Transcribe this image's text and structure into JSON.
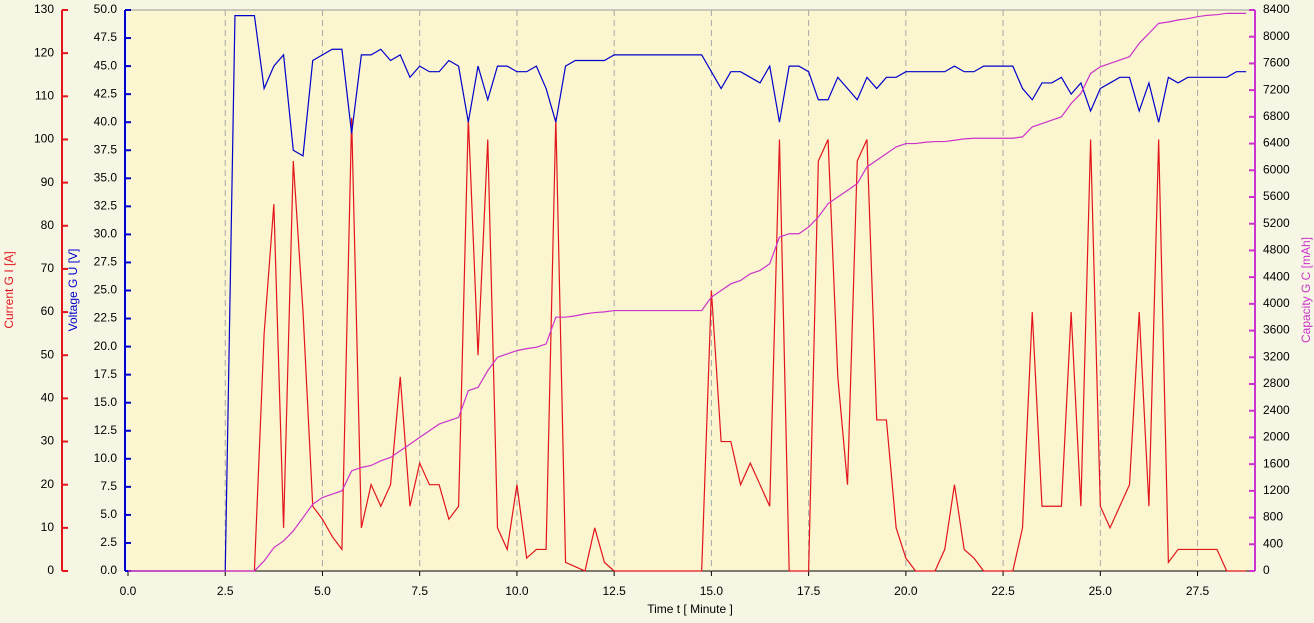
{
  "chart_data": {
    "type": "line",
    "x_label": "Time  t  [ Minute ]",
    "y_label": "Current G  I  [A]",
    "y2_label": "Voltage G  U  [V]",
    "y3_label": "Capacity G  C  [mAh]",
    "xlim": [
      0,
      28.9
    ],
    "ylim": [
      0,
      130
    ],
    "y2lim": [
      0,
      50
    ],
    "y3lim": [
      0,
      8400
    ],
    "xgrid": true,
    "xticks": [
      {
        "value": 0,
        "label": "0.0"
      },
      {
        "value": 2.5,
        "label": "2.5"
      },
      {
        "value": 5,
        "label": "5.0"
      },
      {
        "value": 7.5,
        "label": "7.5"
      },
      {
        "value": 10,
        "label": "10.0"
      },
      {
        "value": 12.5,
        "label": "12.5"
      },
      {
        "value": 15,
        "label": "15.0"
      },
      {
        "value": 17.5,
        "label": "17.5"
      },
      {
        "value": 20,
        "label": "20.0"
      },
      {
        "value": 22.5,
        "label": "22.5"
      },
      {
        "value": 25,
        "label": "25.0"
      },
      {
        "value": 27.5,
        "label": "27.5"
      }
    ],
    "yticks": [
      0,
      10,
      20,
      30,
      40,
      50,
      60,
      70,
      80,
      90,
      100,
      110,
      120,
      130
    ],
    "y2ticks": [
      {
        "value": 0,
        "label": "0.0"
      },
      {
        "value": 2.5,
        "label": "2.5"
      },
      {
        "value": 5,
        "label": "5.0"
      },
      {
        "value": 7.5,
        "label": "7.5"
      },
      {
        "value": 10,
        "label": "10.0"
      },
      {
        "value": 12.5,
        "label": "12.5"
      },
      {
        "value": 15,
        "label": "15.0"
      },
      {
        "value": 17.5,
        "label": "17.5"
      },
      {
        "value": 20,
        "label": "20.0"
      },
      {
        "value": 22.5,
        "label": "22.5"
      },
      {
        "value": 25,
        "label": "25.0"
      },
      {
        "value": 27.5,
        "label": "27.5"
      },
      {
        "value": 30,
        "label": "30.0"
      },
      {
        "value": 32.5,
        "label": "32.5"
      },
      {
        "value": 35,
        "label": "35.0"
      },
      {
        "value": 37.5,
        "label": "37.5"
      },
      {
        "value": 40,
        "label": "40.0"
      },
      {
        "value": 42.5,
        "label": "42.5"
      },
      {
        "value": 45,
        "label": "45.0"
      },
      {
        "value": 47.5,
        "label": "47.5"
      },
      {
        "value": 50,
        "label": "50.0"
      }
    ],
    "y3ticks": [
      0,
      400,
      800,
      1200,
      1600,
      2000,
      2400,
      2800,
      3200,
      3600,
      4000,
      4400,
      4800,
      5200,
      5600,
      6000,
      6400,
      6800,
      7200,
      7600,
      8000,
      8400
    ],
    "x": [
      0,
      0.25,
      0.5,
      0.75,
      1,
      1.25,
      1.5,
      1.75,
      2,
      2.25,
      2.5,
      2.75,
      3,
      3.25,
      3.5,
      3.75,
      4,
      4.25,
      4.5,
      4.75,
      5,
      5.25,
      5.5,
      5.75,
      6,
      6.25,
      6.5,
      6.75,
      7,
      7.25,
      7.5,
      7.75,
      8,
      8.25,
      8.5,
      8.75,
      9,
      9.25,
      9.5,
      9.75,
      10,
      10.25,
      10.5,
      10.75,
      11,
      11.25,
      11.5,
      11.75,
      12,
      12.25,
      12.5,
      12.75,
      13,
      13.25,
      13.5,
      13.75,
      14,
      14.25,
      14.5,
      14.75,
      15,
      15.25,
      15.5,
      15.75,
      16,
      16.25,
      16.5,
      16.75,
      17,
      17.25,
      17.5,
      17.75,
      18,
      18.25,
      18.5,
      18.75,
      19,
      19.25,
      19.5,
      19.75,
      20,
      20.25,
      20.5,
      20.75,
      21,
      21.25,
      21.5,
      21.75,
      22,
      22.25,
      22.5,
      22.75,
      23,
      23.25,
      23.5,
      23.75,
      24,
      24.25,
      24.5,
      24.75,
      25,
      25.25,
      25.5,
      25.75,
      26,
      26.25,
      26.5,
      26.75,
      27,
      27.25,
      27.5,
      27.75,
      28,
      28.25,
      28.5,
      28.75
    ],
    "series": [
      {
        "name": "Current",
        "axis": "y",
        "color": "#e3141c",
        "values": [
          0,
          0,
          0,
          0,
          0,
          0,
          0,
          0,
          0,
          0,
          0,
          0,
          0,
          0,
          55,
          85,
          10,
          95,
          60,
          15,
          12,
          8,
          5,
          105,
          10,
          20,
          15,
          20,
          45,
          15,
          25,
          20,
          20,
          12,
          15,
          105,
          50,
          100,
          10,
          5,
          20,
          3,
          5,
          5,
          105,
          2,
          1,
          0,
          10,
          2,
          0,
          0,
          0,
          0,
          0,
          0,
          0,
          0,
          0,
          0,
          65,
          30,
          30,
          20,
          25,
          20,
          15,
          100,
          0,
          0,
          0,
          95,
          100,
          45,
          20,
          95,
          100,
          35,
          35,
          10,
          3,
          0,
          0,
          0,
          5,
          20,
          5,
          3,
          0,
          0,
          0,
          0,
          10,
          60,
          15,
          15,
          15,
          60,
          15,
          100,
          15,
          10,
          15,
          20,
          60,
          15,
          100,
          2,
          5,
          5,
          5,
          5,
          5,
          0,
          0,
          0
        ]
      },
      {
        "name": "Voltage",
        "axis": "y2",
        "color": "#0000cc",
        "values": [
          0,
          0,
          0,
          0,
          0,
          0,
          0,
          0,
          0,
          0,
          0,
          49.5,
          49.5,
          49.5,
          43,
          45,
          46,
          37.5,
          37,
          45.5,
          46,
          46.5,
          46.5,
          39,
          46,
          46,
          46.5,
          45.5,
          46,
          44,
          45,
          44.5,
          44.5,
          45.5,
          45,
          40,
          45,
          42,
          45,
          45,
          44.5,
          44.5,
          45,
          43,
          40,
          45,
          45.5,
          45.5,
          45.5,
          45.5,
          46,
          46,
          46,
          46,
          46,
          46,
          46,
          46,
          46,
          46,
          44.5,
          43,
          44.5,
          44.5,
          44,
          43.5,
          45,
          40,
          45,
          45,
          44.5,
          42,
          42,
          44,
          43,
          42,
          44,
          43,
          44,
          44,
          44.5,
          44.5,
          44.5,
          44.5,
          44.5,
          45,
          44.5,
          44.5,
          45,
          45,
          45,
          45,
          43,
          42,
          43.5,
          43.5,
          44,
          42.5,
          43.5,
          41,
          43,
          43.5,
          44,
          44,
          41,
          43.5,
          40,
          44,
          43.5,
          44,
          44,
          44,
          44,
          44,
          44.5,
          44.5
        ]
      },
      {
        "name": "Capacity",
        "axis": "y3",
        "color": "#cc33cc",
        "values": [
          0,
          0,
          0,
          0,
          0,
          0,
          0,
          0,
          0,
          0,
          0,
          0,
          0,
          0,
          150,
          350,
          450,
          600,
          800,
          1000,
          1100,
          1150,
          1200,
          1500,
          1550,
          1580,
          1650,
          1700,
          1800,
          1900,
          2000,
          2100,
          2200,
          2250,
          2300,
          2700,
          2750,
          3000,
          3200,
          3250,
          3300,
          3330,
          3350,
          3400,
          3800,
          3800,
          3820,
          3850,
          3870,
          3880,
          3900,
          3900,
          3900,
          3900,
          3900,
          3900,
          3900,
          3900,
          3900,
          3900,
          4100,
          4200,
          4300,
          4350,
          4450,
          4500,
          4600,
          5000,
          5050,
          5050,
          5150,
          5300,
          5500,
          5600,
          5700,
          5800,
          6050,
          6150,
          6250,
          6350,
          6400,
          6400,
          6420,
          6430,
          6430,
          6450,
          6470,
          6480,
          6480,
          6480,
          6480,
          6480,
          6500,
          6650,
          6700,
          6750,
          6800,
          7000,
          7150,
          7450,
          7550,
          7600,
          7650,
          7700,
          7900,
          8050,
          8200,
          8220,
          8250,
          8270,
          8300,
          8320,
          8330,
          8350,
          8350,
          8350
        ]
      }
    ]
  }
}
